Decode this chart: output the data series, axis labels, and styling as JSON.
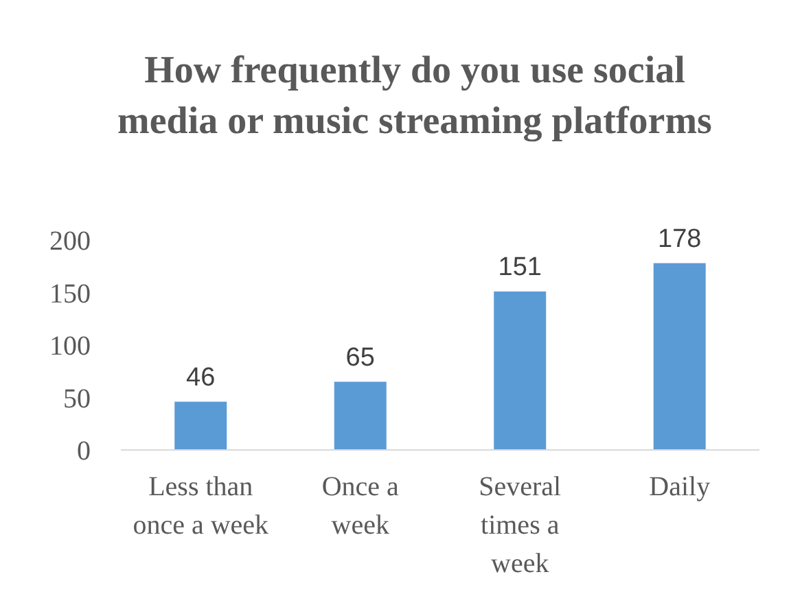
{
  "chart_data": {
    "type": "bar",
    "title": "How frequently do you use social media or music streaming platforms",
    "categories": [
      "Less than once a week",
      "Once a week",
      "Several times a week",
      "Daily"
    ],
    "values": [
      46,
      65,
      151,
      178
    ],
    "color": "#5b9bd5",
    "ylim": [
      0,
      200
    ],
    "yticks": [
      0,
      50,
      100,
      150,
      200
    ],
    "grid": false,
    "data_labels": true
  }
}
